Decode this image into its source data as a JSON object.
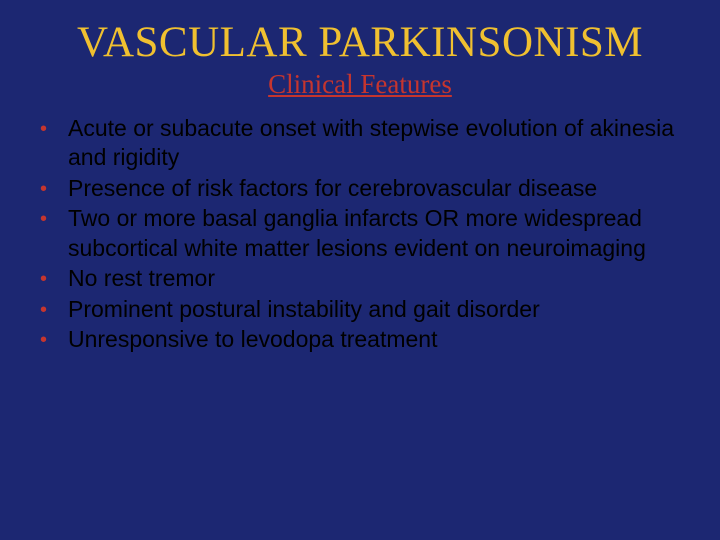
{
  "colors": {
    "background": "#1c2772",
    "title": "#f0c030",
    "subtitle": "#c6352e",
    "bullet_marker": "#c6352e",
    "body_text": "#000000"
  },
  "typography": {
    "title_font": "Times New Roman",
    "title_size_pt": 32,
    "subtitle_font": "Times New Roman",
    "subtitle_size_pt": 20,
    "body_font": "Arial",
    "body_size_pt": 17
  },
  "title": "VASCULAR PARKINSONISM",
  "subtitle": "Clinical Features",
  "bullets": [
    "Acute or subacute onset with stepwise evolution of akinesia and rigidity",
    "Presence of risk factors for cerebrovascular disease",
    "Two or more basal ganglia infarcts OR more widespread subcortical white matter lesions evident on neuroimaging",
    "No rest tremor",
    "Prominent postural instability and gait disorder",
    "Unresponsive to levodopa treatment"
  ],
  "bullet_marker": "•"
}
